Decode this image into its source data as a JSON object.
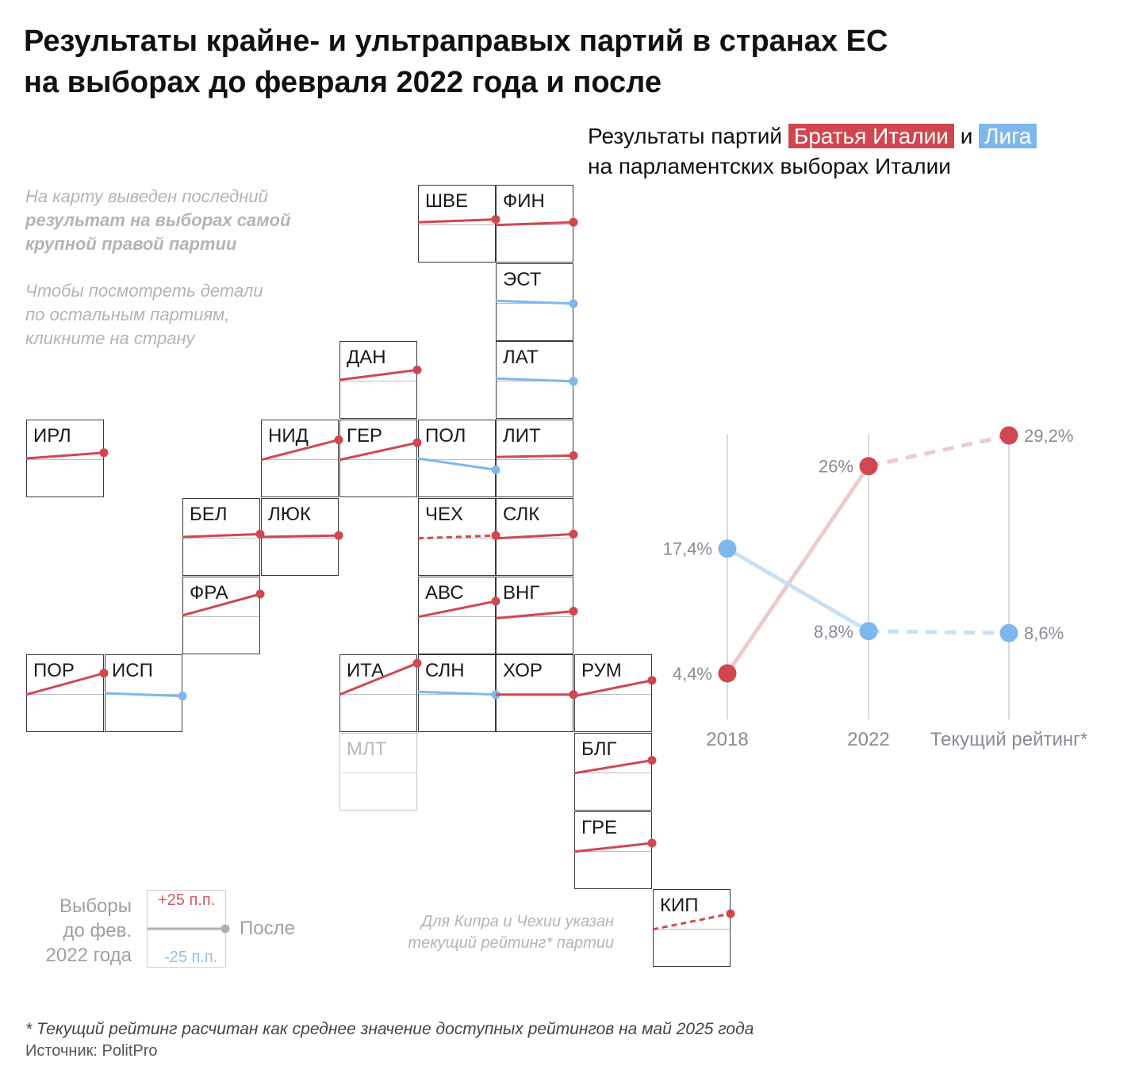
{
  "title": {
    "line1": "Результаты крайне- и ультраправых партий в странах ЕС",
    "line2": "на выборах до февраля 2022 года и после"
  },
  "map_note": {
    "line1": "На карту выведен последний",
    "line2": "результат на выборах самой",
    "line3": "крупной правой партии",
    "line4": "Чтобы посмотреть детали",
    "line5": "по остальным партиям,",
    "line6": "кликните на страну"
  },
  "legend": {
    "plus": "+25 п.п.",
    "minus": "-25 п.п.",
    "before_line1": "Выборы",
    "before_line2": "до фев.",
    "before_line3": "2022 года",
    "after": "После"
  },
  "cyprus_czech_note": {
    "line1": "Для Кипра и Чехии указан",
    "line2": "текущий рейтинг* партии"
  },
  "colors": {
    "rise": "#d0474f",
    "fall": "#7eb7ec",
    "rise_light": "#efc9cc",
    "fall_light": "#c9e0f2",
    "neutral": "#b0b0b0"
  },
  "map": {
    "tiles": [
      {
        "code": "ШВЕ",
        "col": 5,
        "row": 0,
        "before": 1,
        "after": 3,
        "dashed": false
      },
      {
        "code": "ФИН",
        "col": 6,
        "row": 0,
        "before": -1,
        "after": 1,
        "dashed": false
      },
      {
        "code": "ЭСТ",
        "col": 6,
        "row": 1,
        "before": 1,
        "after": -1,
        "dashed": false
      },
      {
        "code": "ДАН",
        "col": 4,
        "row": 2,
        "before": 0,
        "after": 7,
        "dashed": false
      },
      {
        "code": "ЛАТ",
        "col": 6,
        "row": 2,
        "before": 1,
        "after": -1,
        "dashed": false
      },
      {
        "code": "ИРЛ",
        "col": 0,
        "row": 3,
        "before": 0,
        "after": 4,
        "dashed": false
      },
      {
        "code": "НИД",
        "col": 3,
        "row": 3,
        "before": -1,
        "after": 13,
        "dashed": false
      },
      {
        "code": "ГЕР",
        "col": 4,
        "row": 3,
        "before": -1,
        "after": 11,
        "dashed": false
      },
      {
        "code": "ПОЛ",
        "col": 5,
        "row": 3,
        "before": 0,
        "after": -8,
        "dashed": false
      },
      {
        "code": "ЛИТ",
        "col": 6,
        "row": 3,
        "before": 1,
        "after": 2,
        "dashed": false
      },
      {
        "code": "БЕЛ",
        "col": 2,
        "row": 4,
        "before": 0,
        "after": 2,
        "dashed": false
      },
      {
        "code": "ЛЮК",
        "col": 3,
        "row": 4,
        "before": 0,
        "after": 1,
        "dashed": false
      },
      {
        "code": "ЧЕХ",
        "col": 5,
        "row": 4,
        "before": -1,
        "after": 1,
        "dashed": true
      },
      {
        "code": "СЛК",
        "col": 6,
        "row": 4,
        "before": -1,
        "after": 2,
        "dashed": false
      },
      {
        "code": "ФРА",
        "col": 2,
        "row": 5,
        "before": 0,
        "after": 15,
        "dashed": false
      },
      {
        "code": "АВС",
        "col": 5,
        "row": 5,
        "before": -1,
        "after": 10,
        "dashed": false
      },
      {
        "code": "ВНГ",
        "col": 6,
        "row": 5,
        "before": -2,
        "after": 3,
        "dashed": false
      },
      {
        "code": "ПОР",
        "col": 0,
        "row": 6,
        "before": -1,
        "after": 14,
        "dashed": false
      },
      {
        "code": "ИСП",
        "col": 1,
        "row": 6,
        "before": 0,
        "after": -2,
        "dashed": false
      },
      {
        "code": "ИТА",
        "col": 4,
        "row": 6,
        "before": -1,
        "after": 21,
        "dashed": false
      },
      {
        "code": "СЛН",
        "col": 5,
        "row": 6,
        "before": 1,
        "after": -1,
        "dashed": false
      },
      {
        "code": "ХОР",
        "col": 6,
        "row": 6,
        "before": -1,
        "after": -1,
        "dashed": false
      },
      {
        "code": "РУМ",
        "col": 7,
        "row": 6,
        "before": -2,
        "after": 9,
        "dashed": false
      },
      {
        "code": "МЛТ",
        "col": 4,
        "row": 7,
        "faded": true
      },
      {
        "code": "БЛГ",
        "col": 7,
        "row": 7,
        "before": -1,
        "after": 8,
        "dashed": false
      },
      {
        "code": "ГРЕ",
        "col": 7,
        "row": 8,
        "before": -1,
        "after": 5,
        "dashed": false
      },
      {
        "code": "КИП",
        "col": 8,
        "row": 9,
        "before": -1,
        "after": 10,
        "dashed": true
      }
    ]
  },
  "italy_header": {
    "prefix": "Результаты партий",
    "party1": "Братья Италии",
    "conj": "и",
    "party2": "Лига",
    "line2": "на парламентских выборах Италии"
  },
  "chart_data": {
    "type": "line",
    "title": "Результаты партий Братья Италии и Лига на парламентских выборах Италии",
    "categories": [
      "2018",
      "2022",
      "Текущий рейтинг*"
    ],
    "ylim": [
      0,
      30
    ],
    "series": [
      {
        "name": "Братья Италии",
        "values": [
          4.4,
          26,
          29.2
        ],
        "labels": [
          "4,4%",
          "26%",
          "29,2%"
        ],
        "color": "#d0474f"
      },
      {
        "name": "Лига",
        "values": [
          17.4,
          8.8,
          8.6
        ],
        "labels": [
          "17,4%",
          "8,8%",
          "8,6%"
        ],
        "color": "#7eb7ec"
      }
    ]
  },
  "footnote": "* Текущий рейтинг расчитан как среднее значение доступных рейтингов на май 2025 года",
  "source": "Источник: PolitPro"
}
